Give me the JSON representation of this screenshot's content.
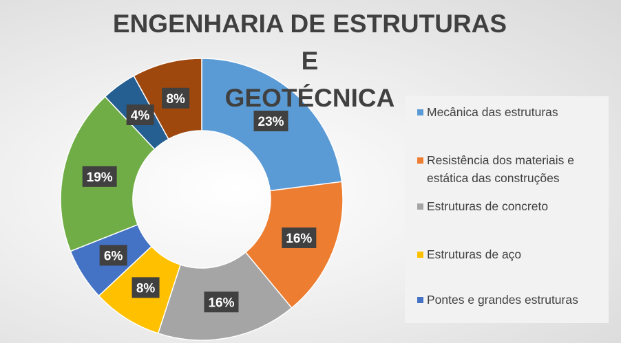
{
  "chart_data": {
    "type": "pie",
    "title": "ENGENHARIA DE ESTRUTURAS E GEOTÉCNICA",
    "title_lines": [
      "ENGENHARIA DE ESTRUTURAS E",
      "GEOTÉCNICA"
    ],
    "slices": [
      {
        "label": "Mecânica das estruturas",
        "value": 23,
        "display": "23%",
        "color": "#5b9bd5",
        "in_legend": true
      },
      {
        "label": "Resistência dos materiais e estática das construções",
        "value": 16,
        "display": "16%",
        "color": "#ed7d31",
        "in_legend": true
      },
      {
        "label": "Estruturas de concreto",
        "value": 16,
        "display": "16%",
        "color": "#a5a5a5",
        "in_legend": true
      },
      {
        "label": "Estruturas de aço",
        "value": 8,
        "display": "8%",
        "color": "#ffc000",
        "in_legend": true
      },
      {
        "label": "Pontes e grandes estruturas",
        "value": 6,
        "display": "6%",
        "color": "#4472c4",
        "in_legend": true
      },
      {
        "label": "",
        "value": 19,
        "display": "19%",
        "color": "#70ad47",
        "in_legend": false
      },
      {
        "label": "",
        "value": 4,
        "display": "4%",
        "color": "#255e91",
        "in_legend": false
      },
      {
        "label": "",
        "value": 8,
        "display": "8%",
        "color": "#9e480e",
        "in_legend": false
      }
    ],
    "legend_position": "right"
  }
}
